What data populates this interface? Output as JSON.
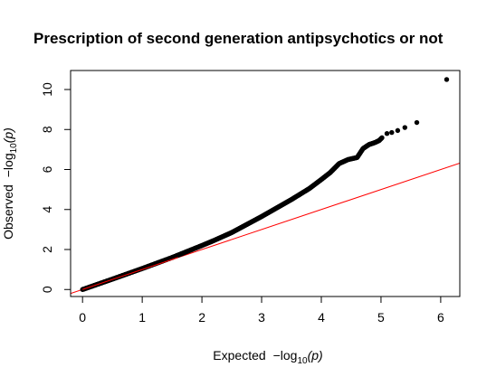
{
  "chart_data": {
    "type": "scatter",
    "title": "Prescription of second generation antipsychotics or not",
    "xlabel": {
      "prefix": "Expected ",
      "minus": "−",
      "log": "log",
      "sub": "10",
      "arg": "(p)"
    },
    "ylabel": {
      "prefix": "Observed ",
      "minus": "−",
      "log": "log",
      "sub": "10",
      "arg": "(p)"
    },
    "xlim": [
      -0.2,
      6.32
    ],
    "ylim": [
      -0.35,
      10.95
    ],
    "x_ticks": [
      "0",
      "1",
      "2",
      "3",
      "4",
      "5",
      "6"
    ],
    "y_ticks": [
      "0",
      "2",
      "4",
      "6",
      "8",
      "10"
    ],
    "reference_line": {
      "slope": 1,
      "intercept": 0,
      "color": "#ff0000"
    },
    "point_color": "#000000",
    "trend": {
      "x": [
        0,
        0.5,
        1,
        1.5,
        2,
        2.2,
        2.5,
        3,
        3.5,
        3.8,
        4,
        4.15,
        4.3,
        4.45,
        4.6,
        4.7,
        4.8,
        4.9,
        4.97,
        5.02
      ],
      "y": [
        0,
        0.52,
        1.05,
        1.6,
        2.2,
        2.45,
        2.85,
        3.65,
        4.5,
        5.05,
        5.5,
        5.85,
        6.3,
        6.5,
        6.6,
        7.05,
        7.25,
        7.35,
        7.45,
        7.6
      ]
    },
    "tail_points": [
      {
        "x": 5.1,
        "y": 7.8
      },
      {
        "x": 5.18,
        "y": 7.85
      },
      {
        "x": 5.28,
        "y": 7.95
      },
      {
        "x": 5.4,
        "y": 8.1
      },
      {
        "x": 5.6,
        "y": 8.35
      },
      {
        "x": 6.1,
        "y": 10.5
      }
    ]
  }
}
